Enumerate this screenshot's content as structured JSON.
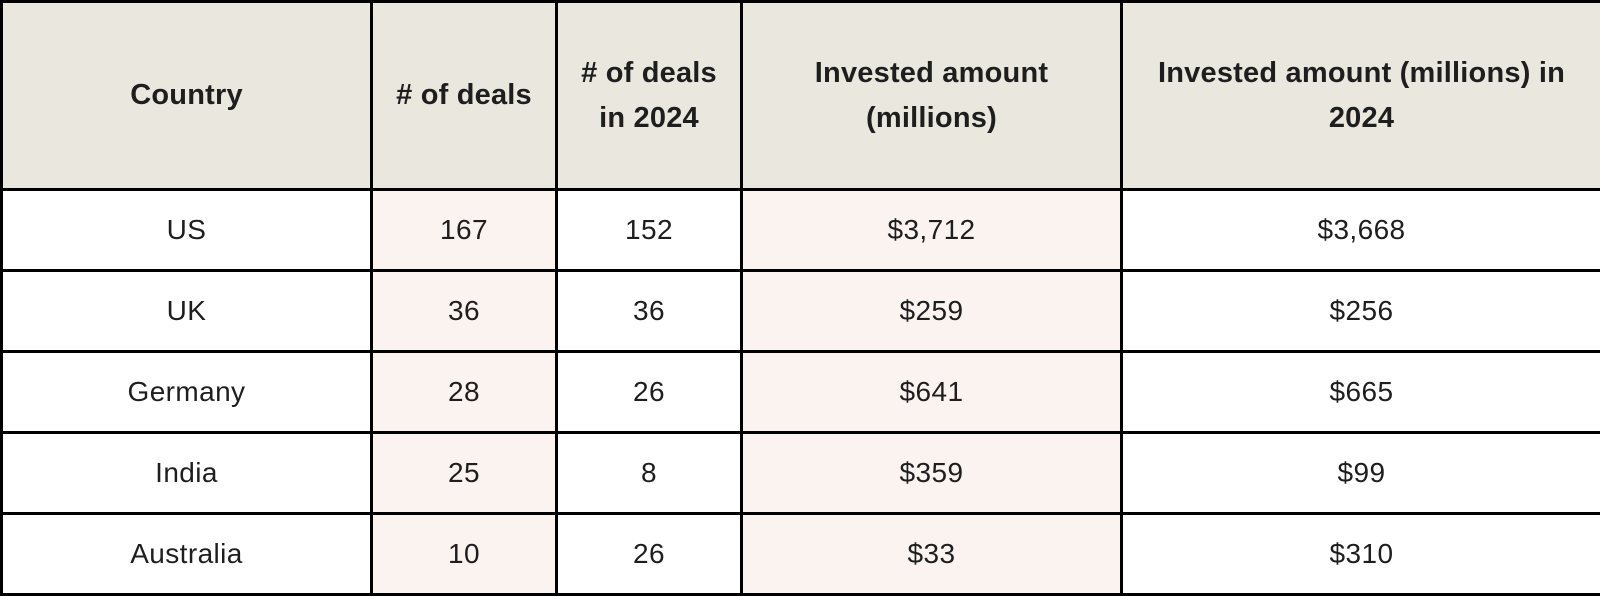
{
  "chart_data": {
    "type": "table",
    "columns": [
      "Country",
      "# of deals",
      "# of deals in 2024",
      "Invested amount (millions)",
      "Invested amount (millions) in 2024"
    ],
    "rows": [
      [
        "US",
        "167",
        "152",
        "$3,712",
        "$3,668"
      ],
      [
        "UK",
        "36",
        "36",
        "$259",
        "$256"
      ],
      [
        "Germany",
        "28",
        "26",
        "$641",
        "$665"
      ],
      [
        "India",
        "25",
        "8",
        "$359",
        "$99"
      ],
      [
        "Australia",
        "10",
        "26",
        "$33",
        "$310"
      ]
    ]
  },
  "colors": {
    "header_bg": "#eae7de",
    "shaded_col_bg": "#faf3ef",
    "cell_bg": "#ffffff",
    "border": "#000000",
    "text": "#1e1e1e"
  }
}
